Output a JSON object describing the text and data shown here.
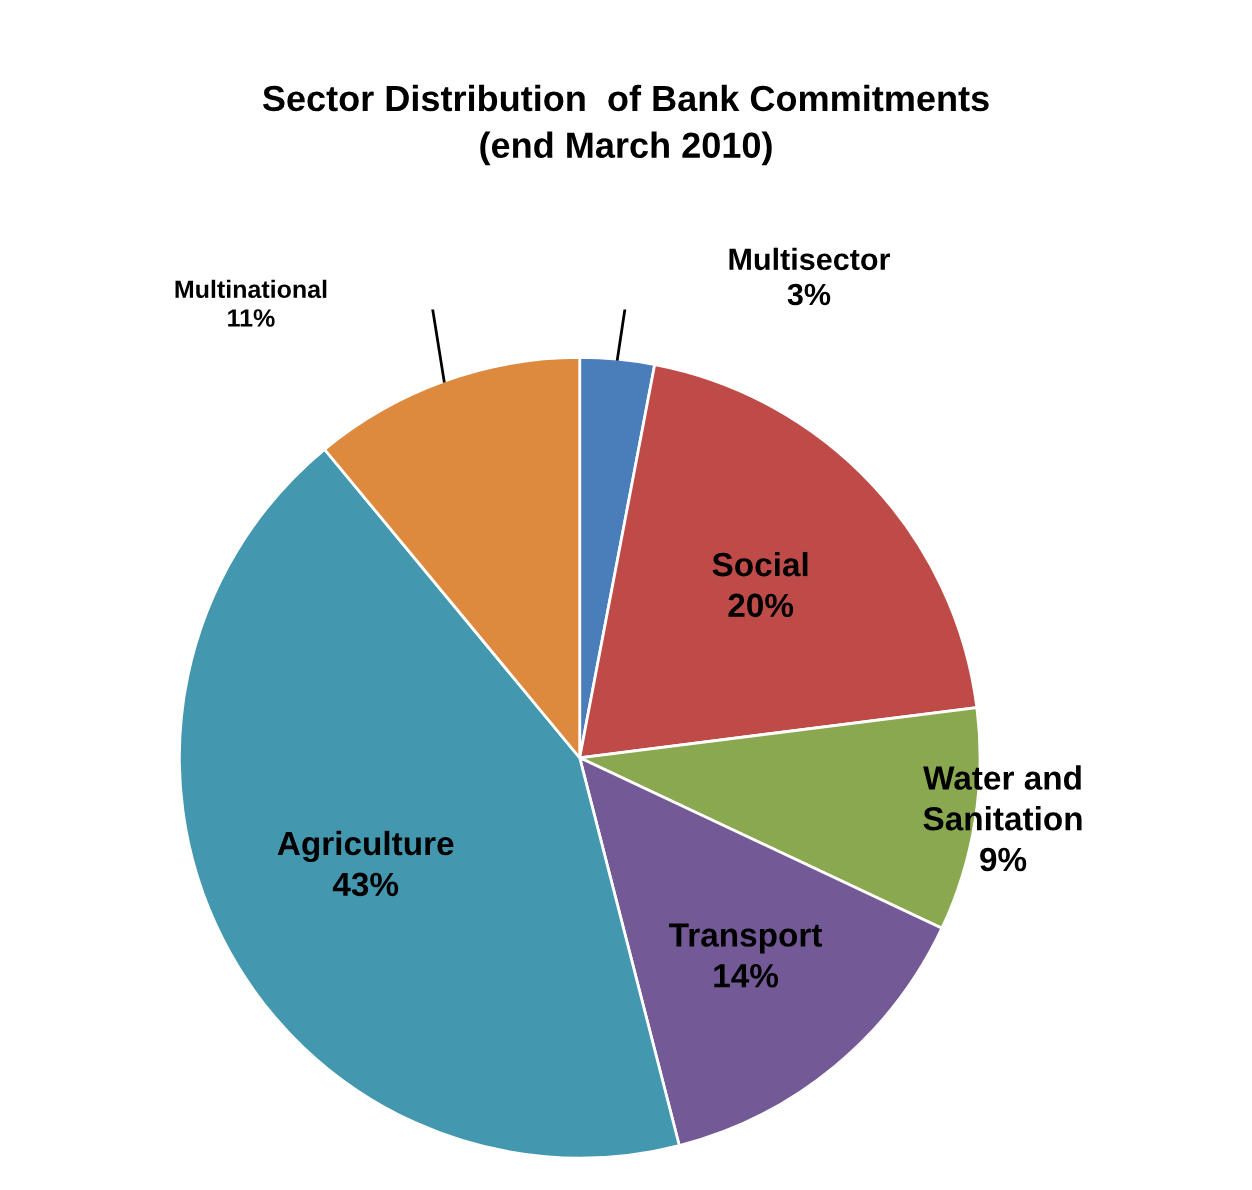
{
  "chart_data": {
    "type": "pie",
    "title": "Sector Distribution  of Bank Commitments\n(end March 2010)",
    "categories": [
      "Multisector",
      "Social",
      "Water and\nSanitation",
      "Transport",
      "Agriculture",
      "Multinational"
    ],
    "values": [
      3,
      20,
      9,
      14,
      43,
      11
    ],
    "value_labels": [
      "3%",
      "20%",
      "9%",
      "14%",
      "43%",
      "11%"
    ],
    "colors": [
      "#4a7ebb",
      "#be4b48",
      "#8aa84f",
      "#735996",
      "#4398b0",
      "#dd8a3e"
    ]
  }
}
